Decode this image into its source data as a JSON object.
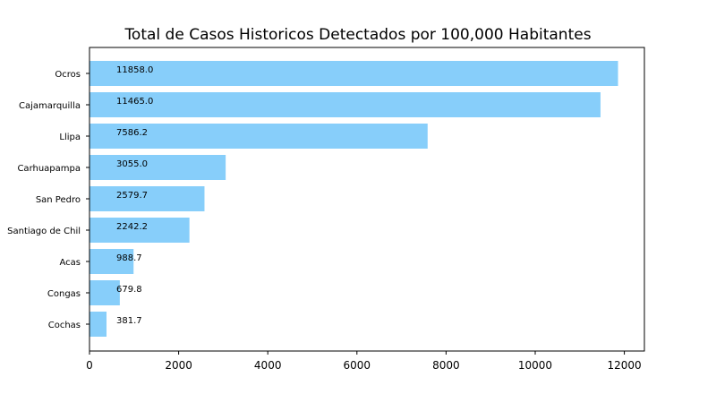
{
  "chart_data": {
    "type": "bar",
    "orientation": "horizontal",
    "title": "Total de Casos Historicos Detectados por 100,000 Habitantes",
    "xlabel": "",
    "ylabel": "",
    "categories": [
      "Ocros",
      "Cajamarquilla",
      "Llipa",
      "Carhuapampa",
      "San Pedro",
      "Santiago de Chil",
      "Acas",
      "Congas",
      "Cochas"
    ],
    "values": [
      11858.0,
      11465.0,
      7586.2,
      3055.0,
      2579.7,
      2242.2,
      988.7,
      679.8,
      381.7
    ],
    "data_labels": [
      "11858.0",
      "11465.0",
      "7586.2",
      "3055.0",
      "2579.7",
      "2242.2",
      "988.7",
      "679.8",
      "381.7"
    ],
    "xlim": [
      0,
      12450
    ],
    "xticks": [
      0,
      2000,
      4000,
      6000,
      8000,
      10000,
      12000
    ],
    "xtick_labels": [
      "0",
      "2000",
      "4000",
      "6000",
      "8000",
      "10000",
      "12000"
    ],
    "bar_color": "#87CEFA",
    "grid": false,
    "legend": "none"
  }
}
